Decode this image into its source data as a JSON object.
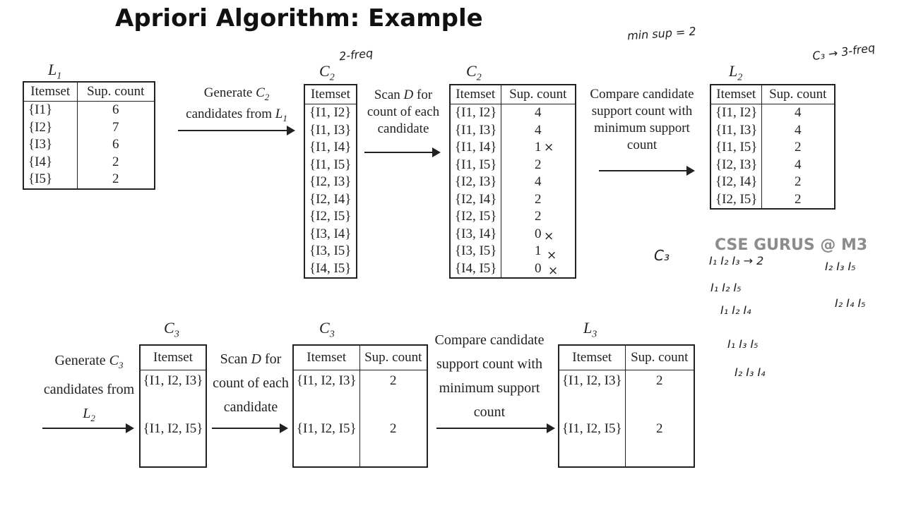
{
  "title": "Apriori Algorithm: Example",
  "labels": {
    "l1": "L",
    "l1_sub": "1",
    "c2a": "C",
    "c2a_sub": "2",
    "c2b": "C",
    "c2b_sub": "2",
    "l2": "L",
    "l2_sub": "2",
    "c3a": "C",
    "c3a_sub": "3",
    "c3b": "C",
    "c3b_sub": "3",
    "l3": "L",
    "l3_sub": "3"
  },
  "headers": {
    "itemset": "Itemset",
    "sup_count": "Sup. count"
  },
  "l1_rows": [
    {
      "itemset": "{I1}",
      "count": "6"
    },
    {
      "itemset": "{I2}",
      "count": "7"
    },
    {
      "itemset": "{I3}",
      "count": "6"
    },
    {
      "itemset": "{I4}",
      "count": "2"
    },
    {
      "itemset": "{I5}",
      "count": "2"
    }
  ],
  "c2_itemsets": [
    "{I1, I2}",
    "{I1, I3}",
    "{I1, I4}",
    "{I1, I5}",
    "{I2, I3}",
    "{I2, I4}",
    "{I2, I5}",
    "{I3, I4}",
    "{I3, I5}",
    "{I4, I5}"
  ],
  "c2_counts": [
    {
      "itemset": "{I1, I2}",
      "count": "4"
    },
    {
      "itemset": "{I1, I3}",
      "count": "4"
    },
    {
      "itemset": "{I1, I4}",
      "count": "1"
    },
    {
      "itemset": "{I1, I5}",
      "count": "2"
    },
    {
      "itemset": "{I2, I3}",
      "count": "4"
    },
    {
      "itemset": "{I2, I4}",
      "count": "2"
    },
    {
      "itemset": "{I2, I5}",
      "count": "2"
    },
    {
      "itemset": "{I3, I4}",
      "count": "0"
    },
    {
      "itemset": "{I3, I5}",
      "count": "1"
    },
    {
      "itemset": "{I4, I5}",
      "count": "0"
    }
  ],
  "l2_rows": [
    {
      "itemset": "{I1, I2}",
      "count": "4"
    },
    {
      "itemset": "{I1, I3}",
      "count": "4"
    },
    {
      "itemset": "{I1, I5}",
      "count": "2"
    },
    {
      "itemset": "{I2, I3}",
      "count": "4"
    },
    {
      "itemset": "{I2, I4}",
      "count": "2"
    },
    {
      "itemset": "{I2, I5}",
      "count": "2"
    }
  ],
  "c3_itemsets": [
    "{I1, I2, I3}",
    "{I1, I2, I5}"
  ],
  "c3_counts": [
    {
      "itemset": "{I1, I2, I3}",
      "count": "2"
    },
    {
      "itemset": "{I1, I2, I5}",
      "count": "2"
    }
  ],
  "l3_rows": [
    {
      "itemset": "{I1, I2, I3}",
      "count": "2"
    },
    {
      "itemset": "{I1, I2, I5}",
      "count": "2"
    }
  ],
  "steps": {
    "gen_c2": {
      "line1": "Generate ",
      "var": "C",
      "sub": "2",
      "line2": "candidates from ",
      "var2": "L",
      "sub2": "1"
    },
    "scan_d_1": {
      "line1a": "Scan ",
      "d": "D",
      "line1b": " for",
      "line2": "count of each",
      "line3": "candidate"
    },
    "compare_1": {
      "line1": "Compare candidate",
      "line2": "support count with",
      "line3": "minimum support",
      "line4": "count"
    },
    "gen_c3": {
      "line1": "Generate ",
      "var": "C",
      "sub": "3",
      "line2": "candidates from",
      "var2": "L",
      "sub2": "2"
    },
    "scan_d_2": {
      "line1a": "Scan ",
      "d": "D",
      "line1b": " for",
      "line2": "count of each",
      "line3": "candidate"
    },
    "compare_2": {
      "line1": "Compare candidate",
      "line2": "support count with",
      "line3": "minimum support",
      "line4": "count"
    }
  },
  "handwriting": {
    "min_sup": "min sup = 2",
    "c2_note": "2-freq",
    "c3_note": "C₃ → 3-freq",
    "x_mark": "×",
    "c3_label": "C₃",
    "c3_candidates": [
      "I₁ I₂ I₃ → 2",
      "I₁ I₂ I₅",
      "I₁ I₂ I₄",
      "I₁ I₃ I₅",
      "I₂ I₃ I₄",
      "I₂ I₃ I₅",
      "I₂ I₄ I₅"
    ]
  },
  "watermark": "CSE GURUS @ M3"
}
